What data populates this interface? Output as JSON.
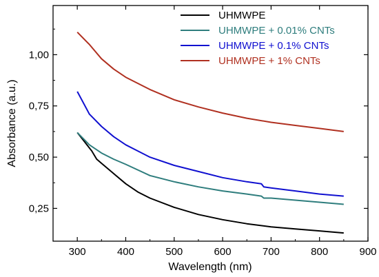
{
  "chart_data": {
    "type": "line",
    "title": "",
    "xlabel": "Wavelength (nm)",
    "ylabel": "Absorbance (a.u.)",
    "xlim": [
      250,
      900
    ],
    "ylim": [
      0.09,
      1.24
    ],
    "x_ticks": [
      300,
      400,
      500,
      600,
      700,
      800,
      900
    ],
    "y_ticks": [
      0.25,
      0.5,
      0.75,
      1.0
    ],
    "x_tick_labels": [
      "300",
      "400",
      "500",
      "600",
      "700",
      "800",
      "900"
    ],
    "y_tick_labels": [
      "0,25",
      "0,50",
      "0,75",
      "1,00"
    ],
    "grid": false,
    "legend_position": "top-right",
    "series": [
      {
        "name": "UHMWPE",
        "color": "#000000",
        "x": [
          300,
          310,
          320,
          330,
          340,
          345,
          350,
          375,
          400,
          425,
          450,
          500,
          550,
          600,
          650,
          700,
          750,
          800,
          850
        ],
        "y": [
          0.62,
          0.59,
          0.56,
          0.53,
          0.49,
          0.48,
          0.47,
          0.42,
          0.37,
          0.33,
          0.3,
          0.255,
          0.22,
          0.195,
          0.175,
          0.16,
          0.15,
          0.14,
          0.13
        ]
      },
      {
        "name": "UHMWPE + 0.01% CNTs",
        "color": "#2e7d7d",
        "x": [
          300,
          325,
          350,
          375,
          400,
          450,
          500,
          550,
          600,
          650,
          680,
          685,
          700,
          750,
          800,
          850
        ],
        "y": [
          0.62,
          0.56,
          0.52,
          0.49,
          0.465,
          0.41,
          0.38,
          0.355,
          0.335,
          0.32,
          0.31,
          0.3,
          0.3,
          0.29,
          0.28,
          0.27
        ]
      },
      {
        "name": "UHMWPE + 0.1% CNTs",
        "color": "#1010d0",
        "x": [
          300,
          325,
          350,
          375,
          400,
          425,
          450,
          500,
          550,
          600,
          650,
          680,
          685,
          700,
          750,
          800,
          850
        ],
        "y": [
          0.82,
          0.71,
          0.65,
          0.6,
          0.56,
          0.53,
          0.5,
          0.46,
          0.43,
          0.4,
          0.38,
          0.37,
          0.355,
          0.35,
          0.335,
          0.32,
          0.31
        ]
      },
      {
        "name": "UHMWPE + 1% CNTs",
        "color": "#b03020",
        "x": [
          300,
          325,
          350,
          375,
          400,
          450,
          500,
          550,
          600,
          650,
          700,
          750,
          800,
          850
        ],
        "y": [
          1.11,
          1.05,
          0.98,
          0.93,
          0.89,
          0.83,
          0.78,
          0.745,
          0.715,
          0.69,
          0.67,
          0.655,
          0.64,
          0.625
        ]
      }
    ]
  }
}
